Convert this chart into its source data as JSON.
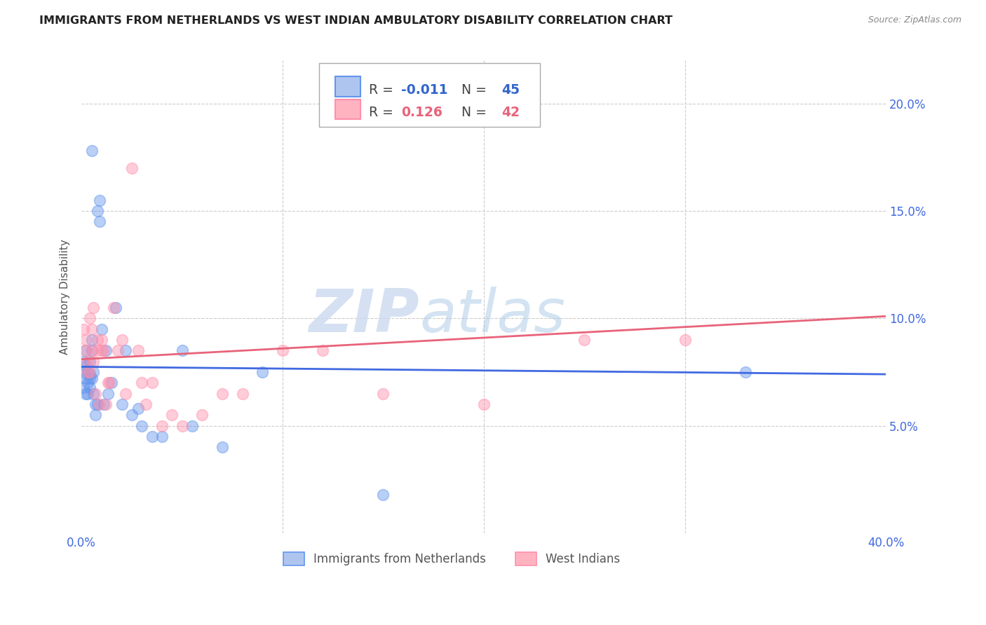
{
  "title": "IMMIGRANTS FROM NETHERLANDS VS WEST INDIAN AMBULATORY DISABILITY CORRELATION CHART",
  "source": "Source: ZipAtlas.com",
  "ylabel": "Ambulatory Disability",
  "xlim": [
    0.0,
    0.4
  ],
  "ylim": [
    0.0,
    0.22
  ],
  "series1_label": "Immigrants from Netherlands",
  "series1_color": "#6495ED",
  "series1_R": "-0.011",
  "series1_N": "45",
  "series2_label": "West Indians",
  "series2_color": "#FF8FAB",
  "series2_R": "0.126",
  "series2_N": "42",
  "watermark_zip": "ZIP",
  "watermark_atlas": "atlas",
  "blue_x": [
    0.001,
    0.001,
    0.001,
    0.002,
    0.002,
    0.002,
    0.002,
    0.003,
    0.003,
    0.003,
    0.004,
    0.004,
    0.004,
    0.004,
    0.005,
    0.005,
    0.005,
    0.006,
    0.006,
    0.007,
    0.007,
    0.008,
    0.008,
    0.009,
    0.009,
    0.01,
    0.011,
    0.012,
    0.013,
    0.015,
    0.017,
    0.02,
    0.022,
    0.025,
    0.028,
    0.03,
    0.035,
    0.04,
    0.05,
    0.055,
    0.07,
    0.09,
    0.15,
    0.33,
    0.005
  ],
  "blue_y": [
    0.075,
    0.068,
    0.08,
    0.072,
    0.065,
    0.078,
    0.085,
    0.07,
    0.075,
    0.065,
    0.072,
    0.08,
    0.068,
    0.074,
    0.085,
    0.09,
    0.072,
    0.075,
    0.065,
    0.06,
    0.055,
    0.06,
    0.15,
    0.145,
    0.155,
    0.095,
    0.06,
    0.085,
    0.065,
    0.07,
    0.105,
    0.06,
    0.085,
    0.055,
    0.058,
    0.05,
    0.045,
    0.045,
    0.085,
    0.05,
    0.04,
    0.075,
    0.018,
    0.075,
    0.178
  ],
  "pink_x": [
    0.001,
    0.002,
    0.002,
    0.003,
    0.003,
    0.004,
    0.004,
    0.005,
    0.005,
    0.006,
    0.006,
    0.007,
    0.008,
    0.008,
    0.009,
    0.01,
    0.01,
    0.011,
    0.012,
    0.013,
    0.014,
    0.016,
    0.018,
    0.02,
    0.022,
    0.025,
    0.028,
    0.03,
    0.032,
    0.035,
    0.04,
    0.045,
    0.05,
    0.06,
    0.07,
    0.08,
    0.1,
    0.12,
    0.15,
    0.2,
    0.25,
    0.3
  ],
  "pink_y": [
    0.095,
    0.085,
    0.09,
    0.08,
    0.075,
    0.1,
    0.075,
    0.095,
    0.085,
    0.08,
    0.105,
    0.065,
    0.09,
    0.085,
    0.06,
    0.09,
    0.085,
    0.085,
    0.06,
    0.07,
    0.07,
    0.105,
    0.085,
    0.09,
    0.065,
    0.17,
    0.085,
    0.07,
    0.06,
    0.07,
    0.05,
    0.055,
    0.05,
    0.055,
    0.065,
    0.065,
    0.085,
    0.085,
    0.065,
    0.06,
    0.09,
    0.09
  ],
  "blue_line_x": [
    0.0,
    0.4
  ],
  "blue_line_y": [
    0.0775,
    0.074
  ],
  "pink_line_x": [
    0.0,
    0.4
  ],
  "pink_line_y": [
    0.081,
    0.101
  ]
}
